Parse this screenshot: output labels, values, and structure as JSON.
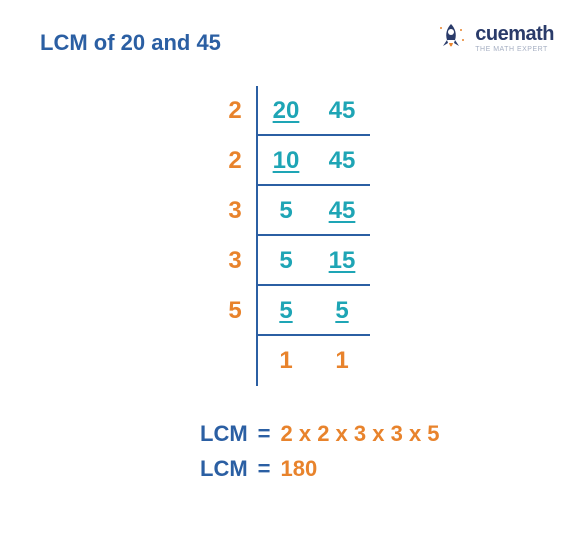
{
  "colors": {
    "title": "#2b5fa3",
    "divisor": "#e8832c",
    "number": "#1ea5b5",
    "result_num": "#e8832c",
    "border": "#2b5fa3",
    "logo_navy": "#2a3b6a",
    "logo_orange": "#e8832c",
    "logo_tagline": "#6a7a9a"
  },
  "title": "LCM of 20 and 45",
  "logo": {
    "text": "cuemath",
    "tagline": "THE MATH EXPERT"
  },
  "ladder": {
    "rows": [
      {
        "divisor": "2",
        "cols": [
          {
            "v": "20",
            "u": true
          },
          {
            "v": "45",
            "u": false
          }
        ]
      },
      {
        "divisor": "2",
        "cols": [
          {
            "v": "10",
            "u": true
          },
          {
            "v": "45",
            "u": false
          }
        ]
      },
      {
        "divisor": "3",
        "cols": [
          {
            "v": "5",
            "u": false
          },
          {
            "v": "45",
            "u": true
          }
        ]
      },
      {
        "divisor": "3",
        "cols": [
          {
            "v": "5",
            "u": false
          },
          {
            "v": "15",
            "u": true
          }
        ]
      },
      {
        "divisor": "5",
        "cols": [
          {
            "v": "5",
            "u": true
          },
          {
            "v": "5",
            "u": true
          }
        ]
      }
    ],
    "final": [
      "1",
      "1"
    ]
  },
  "result": {
    "label": "LCM",
    "eq": "=",
    "expr": "2 x 2 x 3 x 3 x 5",
    "value": "180"
  }
}
